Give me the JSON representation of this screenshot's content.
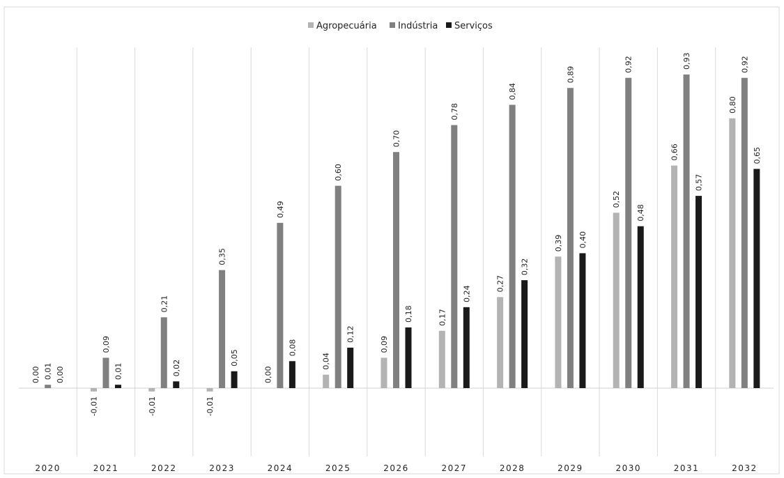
{
  "chart_data": {
    "type": "bar",
    "categories": [
      "2020",
      "2021",
      "2022",
      "2023",
      "2024",
      "2025",
      "2026",
      "2027",
      "2028",
      "2029",
      "2030",
      "2031",
      "2032"
    ],
    "series": [
      {
        "name": "Agropecuária",
        "color": "#b3b3b3",
        "values": [
          0.0,
          -0.01,
          -0.01,
          -0.01,
          0.0,
          0.04,
          0.09,
          0.17,
          0.27,
          0.39,
          0.52,
          0.66,
          0.8
        ],
        "labels": [
          "0,00",
          "-0,01",
          "-0,01",
          "-0,01",
          "0,00",
          "0,04",
          "0,09",
          "0,17",
          "0,27",
          "0,39",
          "0,52",
          "0,66",
          "0,80"
        ]
      },
      {
        "name": "Indústria",
        "color": "#808080",
        "values": [
          0.01,
          0.09,
          0.21,
          0.35,
          0.49,
          0.6,
          0.7,
          0.78,
          0.84,
          0.89,
          0.92,
          0.93,
          0.92
        ],
        "labels": [
          "0,01",
          "0,09",
          "0,21",
          "0,35",
          "0,49",
          "0,60",
          "0,70",
          "0,78",
          "0,84",
          "0,89",
          "0,92",
          "0,93",
          "0,92"
        ]
      },
      {
        "name": "Serviços",
        "color": "#1a1a1a",
        "values": [
          0.0,
          0.01,
          0.02,
          0.05,
          0.08,
          0.12,
          0.18,
          0.24,
          0.32,
          0.4,
          0.48,
          0.57,
          0.65
        ],
        "labels": [
          "0,00",
          "0,01",
          "0,02",
          "0,05",
          "0,08",
          "0,12",
          "0,18",
          "0,24",
          "0,32",
          "0,40",
          "0,48",
          "0,57",
          "0,65"
        ]
      }
    ],
    "ylim": [
      -0.2,
      0.95
    ],
    "legend_position": "top-center",
    "grid": "vertical separators",
    "title": "",
    "xlabel": "",
    "ylabel": ""
  }
}
